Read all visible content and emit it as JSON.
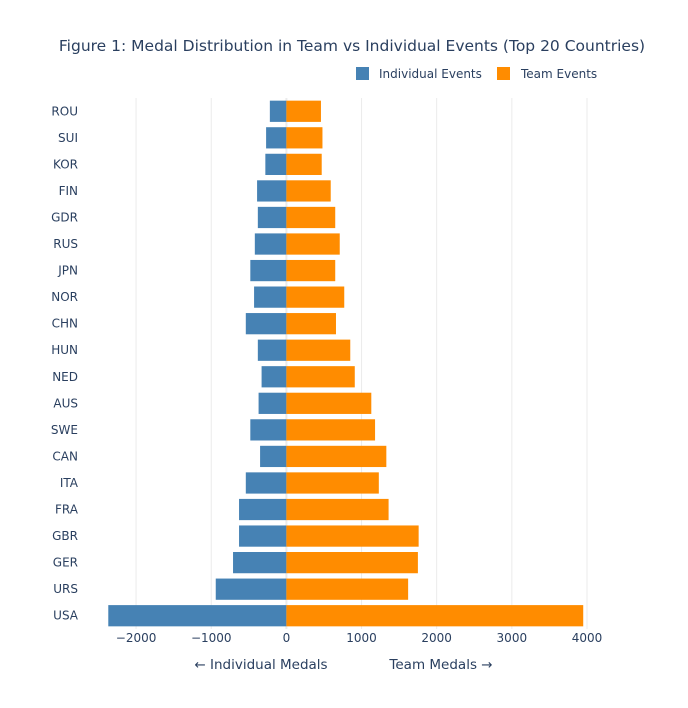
{
  "chart_data": {
    "type": "bar",
    "orientation": "horizontal",
    "title": "Figure 1: Medal Distribution in Team vs Individual Events (Top 20 Countries)",
    "categories": [
      "ROU",
      "SUI",
      "KOR",
      "FIN",
      "GDR",
      "RUS",
      "JPN",
      "NOR",
      "CHN",
      "HUN",
      "NED",
      "AUS",
      "SWE",
      "CAN",
      "ITA",
      "FRA",
      "GBR",
      "GER",
      "URS",
      "USA"
    ],
    "series": [
      {
        "name": "Individual Events",
        "color": "#4682b4",
        "values": [
          -220,
          -270,
          -280,
          -390,
          -380,
          -420,
          -480,
          -430,
          -540,
          -380,
          -330,
          -370,
          -480,
          -350,
          -540,
          -630,
          -630,
          -710,
          -940,
          -2370
        ]
      },
      {
        "name": "Team Events",
        "color": "#ff8c00",
        "values": [
          460,
          480,
          470,
          590,
          650,
          710,
          650,
          770,
          660,
          850,
          910,
          1130,
          1180,
          1330,
          1230,
          1360,
          1760,
          1750,
          1620,
          3950
        ]
      }
    ],
    "x_ticks": [
      "−2000",
      "−1000",
      "0",
      "1000",
      "2000",
      "3000",
      "4000"
    ],
    "x_tick_values": [
      -2000,
      -1000,
      0,
      1000,
      2000,
      3000,
      4000
    ],
    "xlim": [
      -2600,
      4120
    ],
    "xlabel_left": "← Individual Medals",
    "xlabel_right": "Team Medals →",
    "legend_position": "top-right",
    "grid": true
  }
}
